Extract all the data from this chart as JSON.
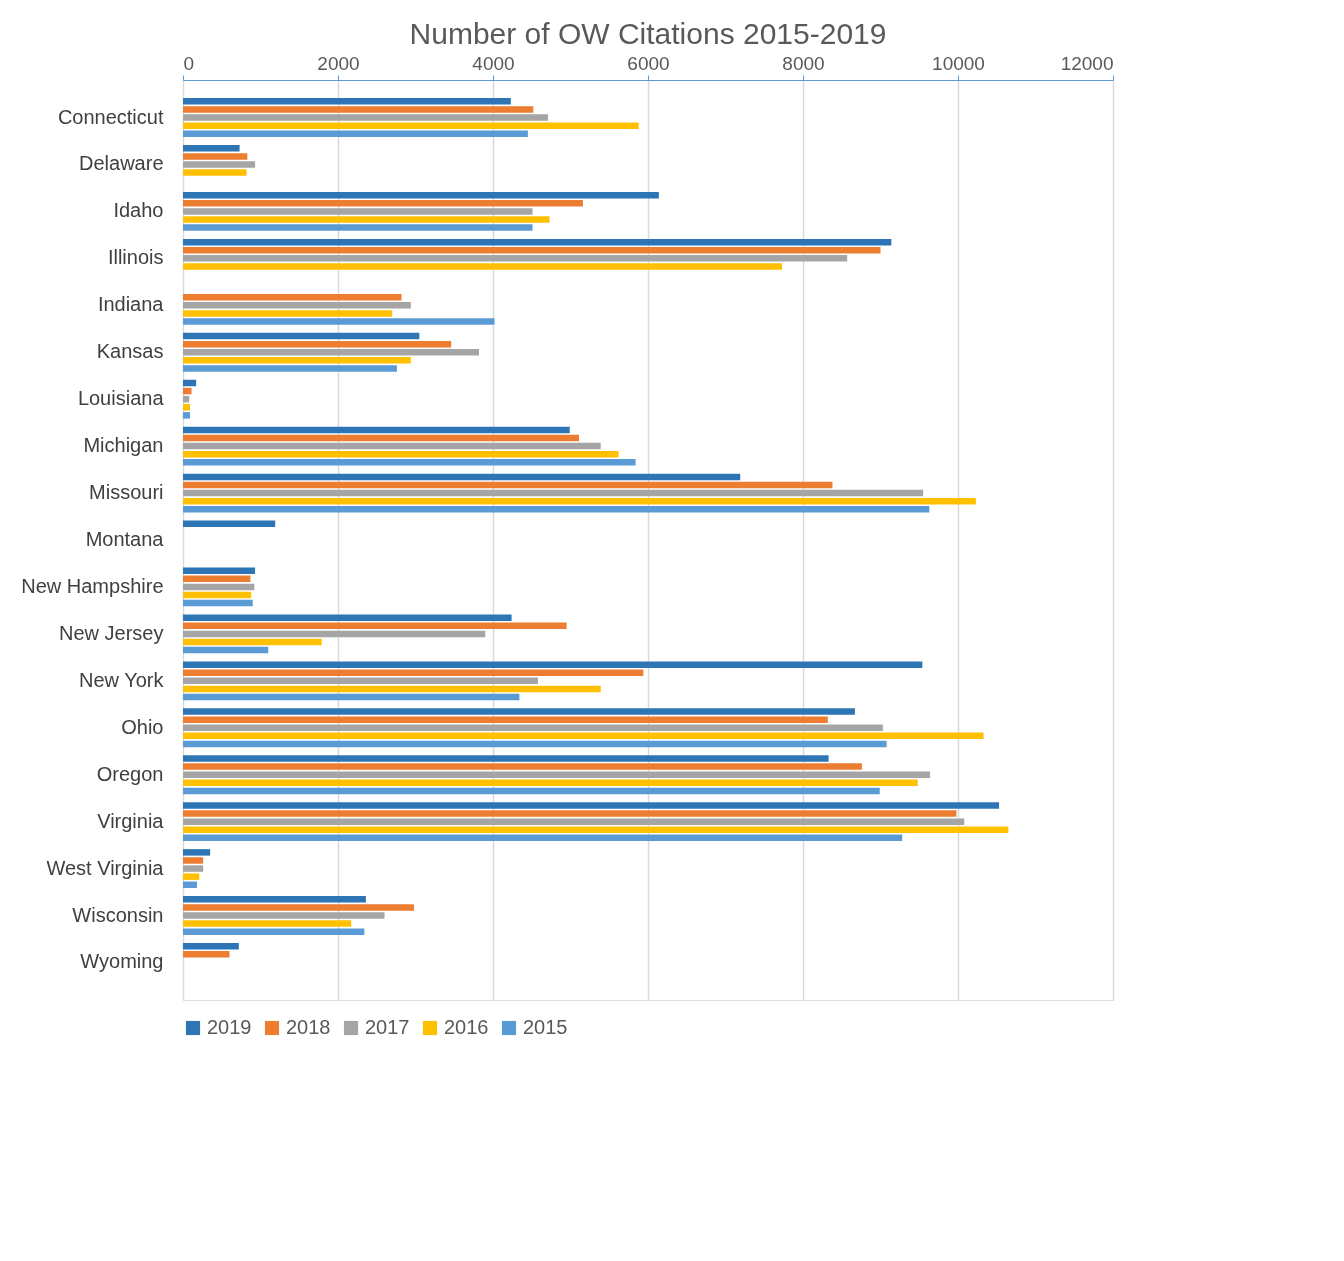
{
  "chart_data": {
    "type": "bar",
    "orientation": "horizontal",
    "title": "Number of OW Citations 2015-2019",
    "categories": [
      "Connecticut",
      "Delaware",
      "Idaho",
      "Illinois",
      "Indiana",
      "Kansas",
      "Louisiana",
      "Michigan",
      "Missouri",
      "Montana",
      "New Hampshire",
      "New Jersey",
      "New York",
      "Ohio",
      "Oregon",
      "Virginia",
      "West Virginia",
      "Wisconsin",
      "Wyoming"
    ],
    "series": [
      {
        "name": "2019",
        "color": "#2e75b6",
        "values": [
          4230,
          730,
          6140,
          9140,
          null,
          3050,
          170,
          4990,
          7190,
          1190,
          930,
          4240,
          9540,
          8670,
          8330,
          10530,
          350,
          2360,
          720
        ]
      },
      {
        "name": "2018",
        "color": "#ed7d31",
        "values": [
          4520,
          830,
          5160,
          9000,
          2820,
          3460,
          110,
          5110,
          8380,
          null,
          870,
          4950,
          5940,
          8320,
          8760,
          9980,
          260,
          2980,
          600
        ]
      },
      {
        "name": "2017",
        "color": "#a5a5a5",
        "values": [
          4710,
          930,
          4510,
          8570,
          2940,
          3820,
          80,
          5390,
          9550,
          null,
          920,
          3900,
          4580,
          9030,
          9640,
          10080,
          260,
          2600,
          null
        ]
      },
      {
        "name": "2016",
        "color": "#ffc000",
        "values": [
          5880,
          820,
          4730,
          7730,
          2700,
          2940,
          90,
          5620,
          10230,
          null,
          880,
          1790,
          5390,
          10330,
          9480,
          10650,
          210,
          2170,
          null
        ]
      },
      {
        "name": "2015",
        "color": "#5b9bd5",
        "values": [
          4450,
          null,
          4510,
          null,
          4020,
          2760,
          90,
          5840,
          9630,
          null,
          900,
          1100,
          4340,
          9080,
          8990,
          9280,
          180,
          2340,
          null
        ]
      }
    ],
    "xlim": [
      0,
      12000
    ],
    "xticks": [
      0,
      2000,
      4000,
      6000,
      8000,
      10000,
      12000
    ],
    "grid": "x",
    "legend": "bottom"
  }
}
